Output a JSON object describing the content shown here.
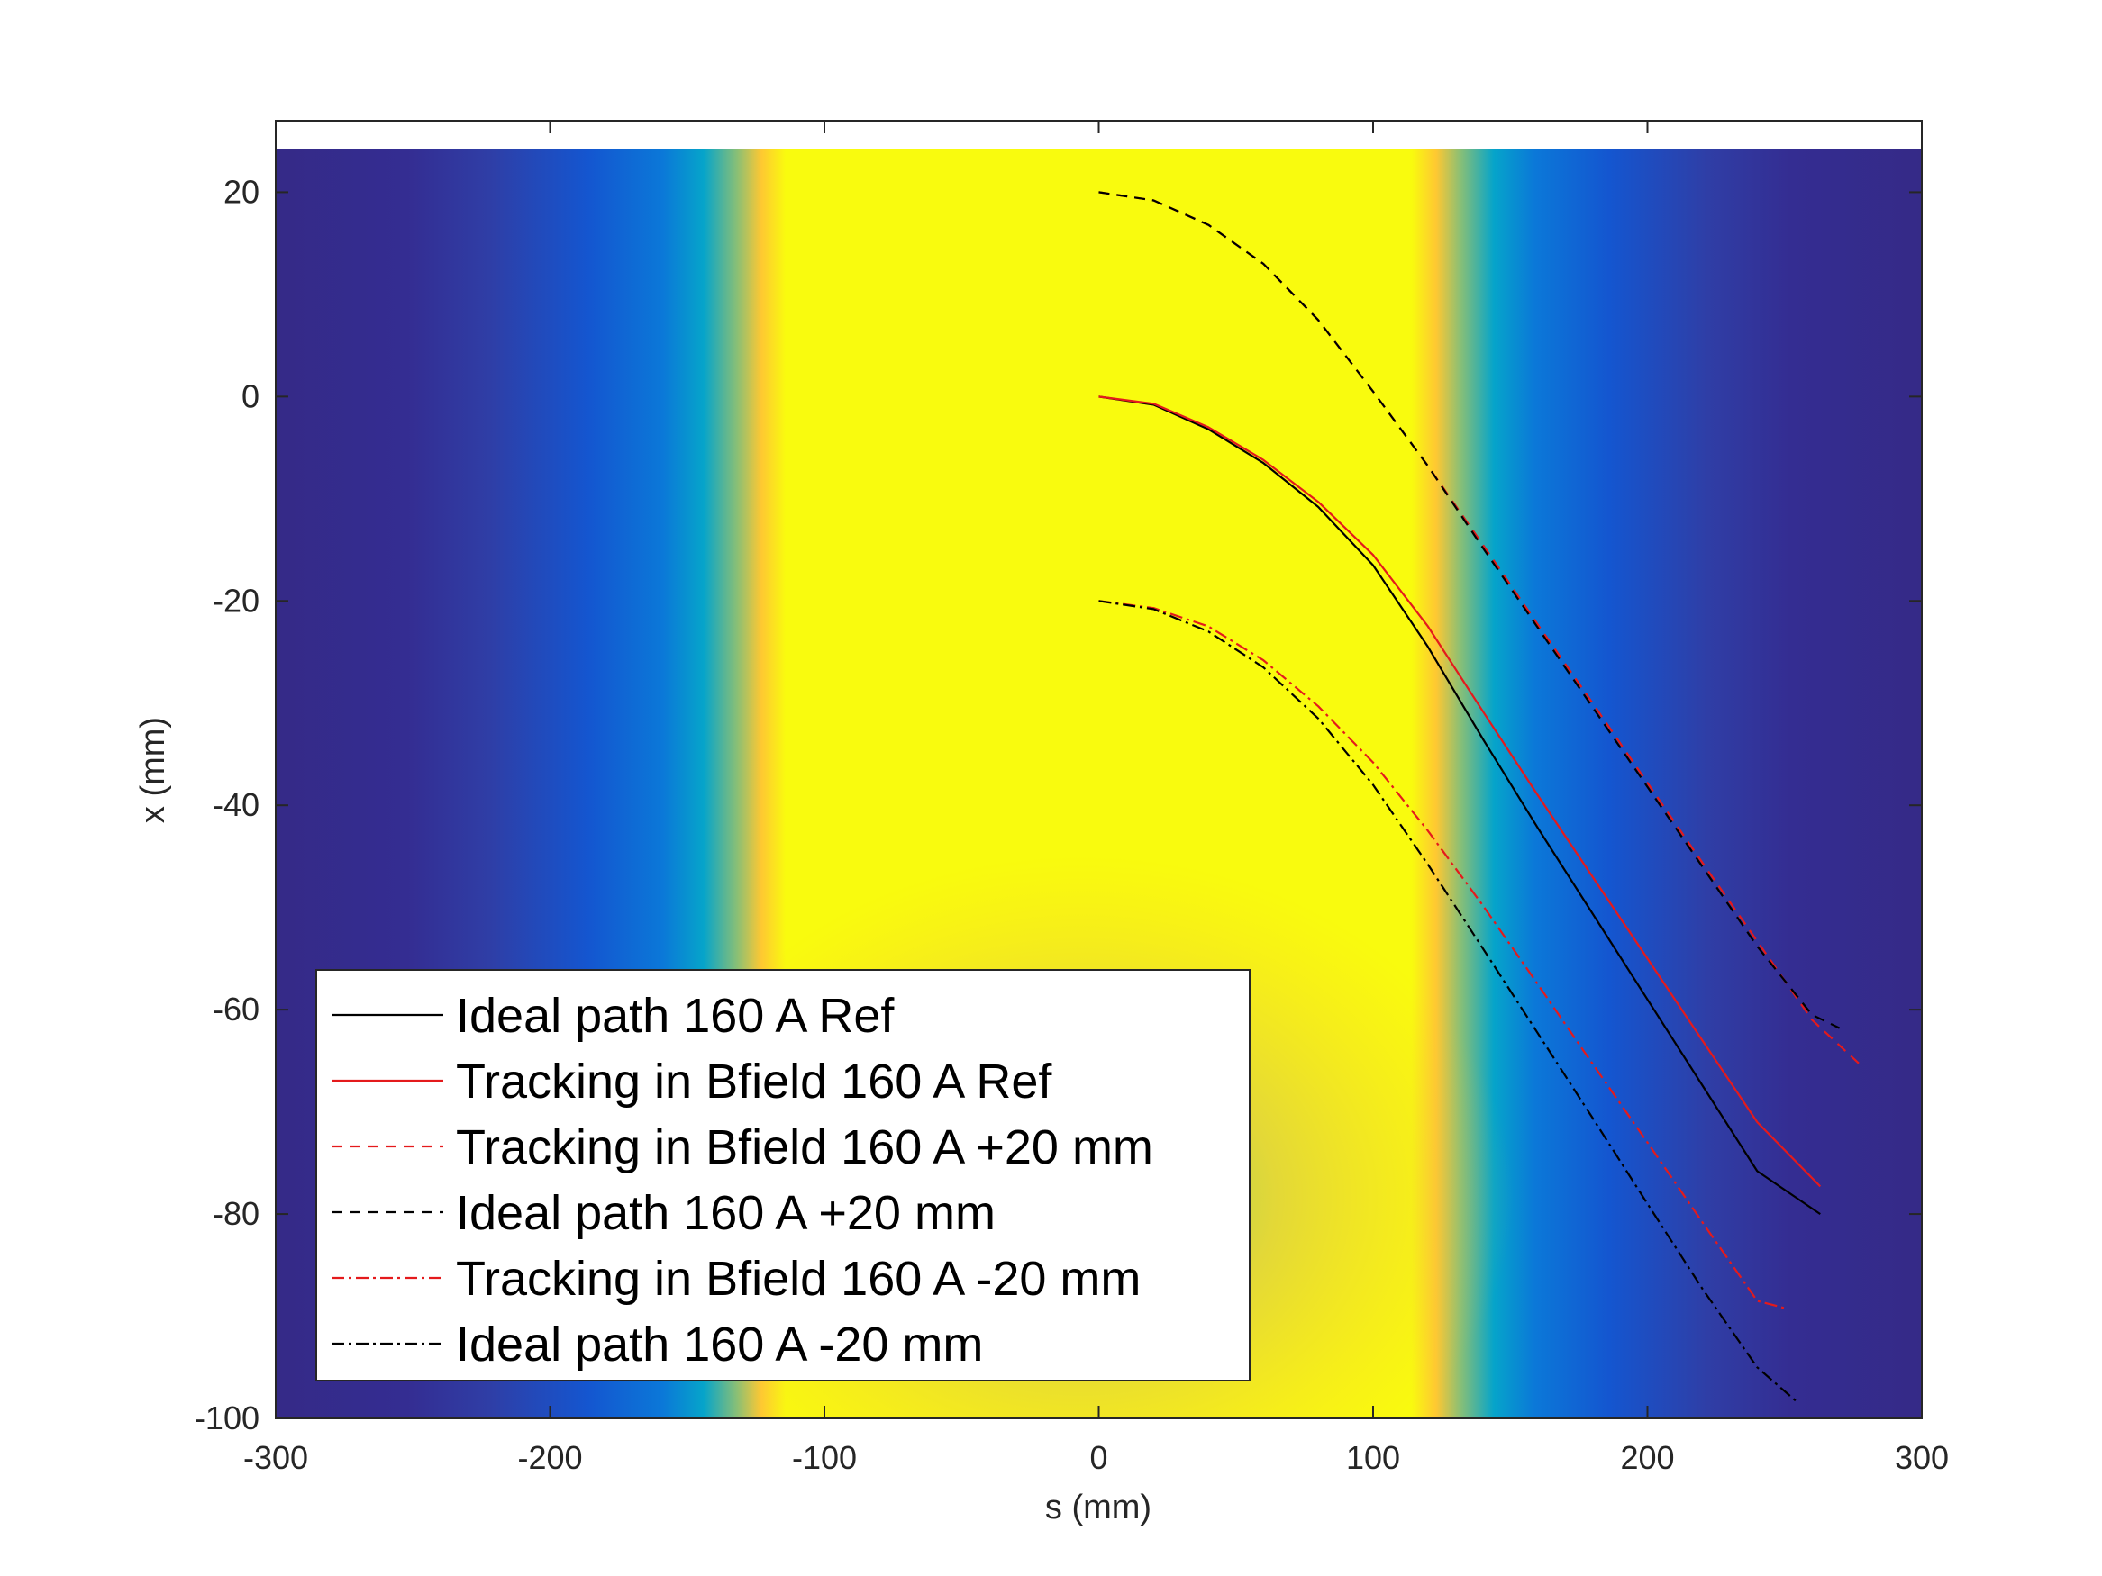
{
  "chart_data": {
    "type": "line",
    "background": "heatmap of magnetic field (yellow high, dark blue low)",
    "colormap": [
      "#352a87",
      "#0f5cdd",
      "#1481d6",
      "#06a4ca",
      "#2eb7a4",
      "#87bf77",
      "#d1bb59",
      "#fec832",
      "#f9fb0e"
    ],
    "xlabel": "s (mm)",
    "ylabel": "x (mm)",
    "xlim": [
      -300,
      300
    ],
    "ylim": [
      -100,
      27
    ],
    "xticks": [
      -300,
      -200,
      -100,
      0,
      100,
      200,
      300
    ],
    "yticks": [
      -100,
      -80,
      -60,
      -40,
      -20,
      0,
      20
    ],
    "xtick_labels": [
      "-300",
      "-200",
      "-100",
      "0",
      "100",
      "200",
      "300"
    ],
    "ytick_labels": [
      "-100",
      "-80",
      "-60",
      "-40",
      "-20",
      "0",
      "20"
    ],
    "grid": false,
    "legend_position": "bottom-left",
    "series": [
      {
        "name": "Ideal path 160 A Ref",
        "color": "#000000",
        "style": "solid",
        "x": [
          0,
          20,
          40,
          60,
          80,
          100,
          120,
          140,
          160,
          180,
          200,
          220,
          240,
          263
        ],
        "y": [
          0,
          -0.8,
          -3.2,
          -6.5,
          -10.8,
          -16.5,
          -24.5,
          -33.5,
          -42.2,
          -50.6,
          -59,
          -67.4,
          -75.8,
          -80
        ]
      },
      {
        "name": "Tracking in Bfield 160 A Ref",
        "color": "#e41a1c",
        "style": "solid",
        "x": [
          0,
          20,
          40,
          60,
          80,
          100,
          120,
          140,
          160,
          180,
          200,
          220,
          240,
          263
        ],
        "y": [
          0,
          -0.7,
          -3,
          -6.2,
          -10.3,
          -15.5,
          -22.5,
          -30.8,
          -39,
          -47,
          -55,
          -63,
          -71,
          -77.3
        ]
      },
      {
        "name": "Tracking in Bfield 160 A +20 mm",
        "color": "#e41a1c",
        "style": "dashed",
        "x": [
          0,
          20,
          40,
          60,
          80,
          100,
          120,
          140,
          160,
          180,
          200,
          220,
          240,
          260,
          278
        ],
        "y": [
          20,
          19.2,
          16.8,
          13,
          7.5,
          0.5,
          -6.8,
          -14.5,
          -22.3,
          -30,
          -37.8,
          -45.6,
          -53.3,
          -61,
          -65.5
        ]
      },
      {
        "name": "Ideal path 160 A +20 mm",
        "color": "#000000",
        "style": "dashed",
        "x": [
          0,
          20,
          40,
          60,
          80,
          100,
          120,
          140,
          160,
          180,
          200,
          220,
          240,
          260,
          270
        ],
        "y": [
          20,
          19.2,
          16.8,
          13,
          7.5,
          0.5,
          -6.8,
          -14.8,
          -22.6,
          -30.4,
          -38.2,
          -46,
          -53.8,
          -60.5,
          -61.8
        ]
      },
      {
        "name": "Tracking in Bfield 160 A -20 mm",
        "color": "#e41a1c",
        "style": "dashdot",
        "x": [
          0,
          20,
          40,
          60,
          80,
          100,
          120,
          140,
          160,
          180,
          200,
          220,
          240,
          250
        ],
        "y": [
          -20,
          -20.7,
          -22.5,
          -25.8,
          -30.3,
          -35.8,
          -42.5,
          -49.8,
          -57.5,
          -65.3,
          -73,
          -80.8,
          -88.5,
          -89.2
        ]
      },
      {
        "name": "Ideal path 160 A -20 mm",
        "color": "#000000",
        "style": "dashdot",
        "x": [
          0,
          20,
          40,
          60,
          80,
          100,
          120,
          140,
          160,
          180,
          200,
          220,
          240,
          255
        ],
        "y": [
          -20,
          -20.8,
          -23,
          -26.5,
          -31.5,
          -38,
          -45.8,
          -54,
          -62.3,
          -70.6,
          -79,
          -87.3,
          -95,
          -98.5
        ]
      }
    ]
  }
}
